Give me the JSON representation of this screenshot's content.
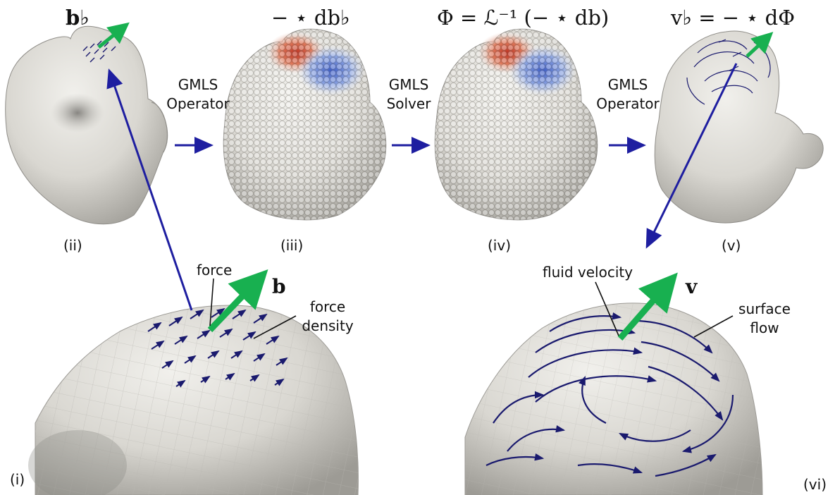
{
  "top_formulas": {
    "ii": "b♭",
    "iii": "− ⋆ db♭",
    "iv": "Φ = ℒ⁻¹ (− ⋆ db)",
    "v": "v♭ = − ⋆ dΦ"
  },
  "steps": [
    {
      "line1": "GMLS",
      "line2": "Operator"
    },
    {
      "line1": "GMLS",
      "line2": "Solver"
    },
    {
      "line1": "GMLS",
      "line2": "Operator"
    }
  ],
  "panel_labels": {
    "i": "(i)",
    "ii": "(ii)",
    "iii": "(iii)",
    "iv": "(iv)",
    "v": "(v)",
    "vi": "(vi)"
  },
  "annotations_left": {
    "force": "force",
    "b": "b",
    "force_density_1": "force",
    "force_density_2": "density"
  },
  "annotations_right": {
    "fluid_velocity": "fluid velocity",
    "v": "v",
    "surface_flow_1": "surface",
    "surface_flow_2": "flow"
  },
  "colors": {
    "arrow_blue": "#1e1ea0",
    "green": "#18b050",
    "surface_gray": "#d6d4ce",
    "red": "#c0301e",
    "blue_field": "#3c5cc8"
  }
}
